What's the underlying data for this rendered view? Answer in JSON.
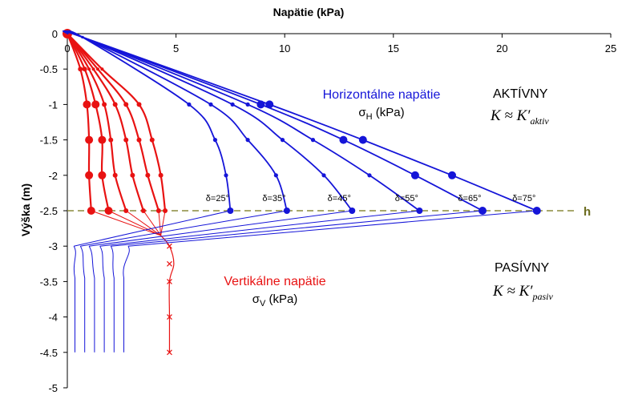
{
  "chart_data": {
    "type": "line",
    "title": "Napätie (kPa)",
    "ylabel": "Výška (m)",
    "xlim": [
      0,
      25
    ],
    "ylim": [
      -5,
      0
    ],
    "x_ticks": [
      0,
      5,
      10,
      15,
      20,
      25
    ],
    "x_tick_labels": [
      "0",
      "5",
      "10",
      "15",
      "20",
      "25"
    ],
    "y_ticks": [
      0,
      -0.5,
      -1,
      -1.5,
      -2,
      -2.5,
      -3,
      -3.5,
      -4,
      -4.5,
      -5
    ],
    "y_tick_labels": [
      "0",
      "-0.5",
      "-1",
      "-1.5",
      "-2",
      "-2.5",
      "-3",
      "-3.5",
      "-4",
      "-4.5",
      "-5"
    ],
    "grid": false,
    "legend": "none",
    "colors": {
      "horizontal": "#1515d8",
      "vertical": "#e81212",
      "h_line": "#8c8c3c",
      "text": "#000000"
    },
    "h_level": -2.5,
    "h_label": "h",
    "annotations": {
      "horizontal_title": "Horizontálne napätie",
      "horizontal_unit": "σH (kPa)",
      "vertical_title": "Vertikálne napätie",
      "vertical_unit": "σV (kPa)",
      "active_label": "AKTÍVNY",
      "active_formula": "K ≈ K′aktiv",
      "passive_label": "PASÍVNY",
      "passive_formula": "K ≈ K′pasiv"
    },
    "horizontal_series": [
      {
        "name": "δ=25°",
        "x": [
          0,
          0.7,
          5.6,
          6.8,
          7.3,
          7.5
        ],
        "y": [
          0,
          -0.05,
          -1,
          -1.5,
          -2,
          -2.5
        ],
        "marker_idx": [
          1,
          2,
          3,
          4,
          5
        ],
        "big_idx": []
      },
      {
        "name": "δ=35°",
        "x": [
          0,
          0.7,
          6.6,
          8.3,
          9.6,
          10.1
        ],
        "y": [
          0,
          -0.05,
          -1,
          -1.5,
          -2,
          -2.5
        ],
        "marker_idx": [
          1,
          2,
          3,
          4,
          5
        ],
        "big_idx": []
      },
      {
        "name": "δ=45°",
        "x": [
          0,
          0.7,
          7.6,
          9.9,
          11.8,
          13.1
        ],
        "y": [
          0,
          -0.05,
          -1,
          -1.5,
          -2,
          -2.5
        ],
        "marker_idx": [
          1,
          2,
          3,
          4,
          5
        ],
        "big_idx": []
      },
      {
        "name": "δ=55°",
        "x": [
          0,
          0.7,
          8.3,
          11.3,
          13.9,
          16.2
        ],
        "y": [
          0,
          -0.05,
          -1,
          -1.5,
          -2,
          -2.5
        ],
        "marker_idx": [
          1,
          2,
          3,
          4,
          5
        ],
        "big_idx": []
      },
      {
        "name": "δ=65°",
        "x": [
          0,
          0.7,
          8.9,
          12.7,
          16.0,
          19.1
        ],
        "y": [
          0,
          -0.05,
          -1,
          -1.5,
          -2,
          -2.5
        ],
        "marker_idx": [
          1,
          2,
          3,
          4,
          5
        ],
        "big_idx": [
          2,
          3,
          4,
          5
        ]
      },
      {
        "name": "δ=75°",
        "x": [
          0,
          0.7,
          9.3,
          13.6,
          17.7,
          21.6
        ],
        "y": [
          0,
          -0.05,
          -1,
          -1.5,
          -2,
          -2.5
        ],
        "marker_idx": [
          1,
          2,
          3,
          4,
          5
        ],
        "big_idx": [
          2,
          3,
          4,
          5
        ]
      }
    ],
    "horizontal_lower": {
      "top_x": [
        0.3,
        0.6,
        1.0,
        1.5,
        2.0,
        2.8
      ],
      "top_y": -3.0,
      "knee_y": -3.45,
      "bottom_y": -4.5
    },
    "vertical_series": [
      {
        "x": [
          0,
          0.6,
          0.9,
          1.0,
          1.0,
          1.1
        ],
        "y": [
          0,
          -0.5,
          -1,
          -1.5,
          -2,
          -2.5
        ],
        "big": true
      },
      {
        "x": [
          0,
          0.8,
          1.3,
          1.6,
          1.6,
          1.9
        ],
        "y": [
          0,
          -0.5,
          -1,
          -1.5,
          -2,
          -2.5
        ],
        "big": true
      },
      {
        "x": [
          0,
          1.0,
          1.7,
          2.0,
          2.2,
          2.7
        ],
        "y": [
          0,
          -0.5,
          -1,
          -1.5,
          -2,
          -2.5
        ],
        "big": false
      },
      {
        "x": [
          0,
          1.2,
          2.2,
          2.7,
          3.0,
          3.5
        ],
        "y": [
          0,
          -0.5,
          -1,
          -1.5,
          -2,
          -2.5
        ],
        "big": false
      },
      {
        "x": [
          0,
          1.4,
          2.7,
          3.3,
          3.7,
          4.2
        ],
        "y": [
          0,
          -0.5,
          -1,
          -1.5,
          -2,
          -2.5
        ],
        "big": false
      },
      {
        "x": [
          0,
          1.6,
          3.3,
          3.9,
          4.3,
          4.5
        ],
        "y": [
          0,
          -0.5,
          -1,
          -1.5,
          -2,
          -2.5
        ],
        "big": false
      }
    ],
    "vertical_lower": {
      "converge_x": 4.3,
      "converge_y": -2.85,
      "x": [
        4.7,
        4.7,
        4.7,
        4.7,
        4.7
      ],
      "y": [
        -3.0,
        -3.25,
        -3.5,
        -4.0,
        -4.5
      ]
    }
  }
}
